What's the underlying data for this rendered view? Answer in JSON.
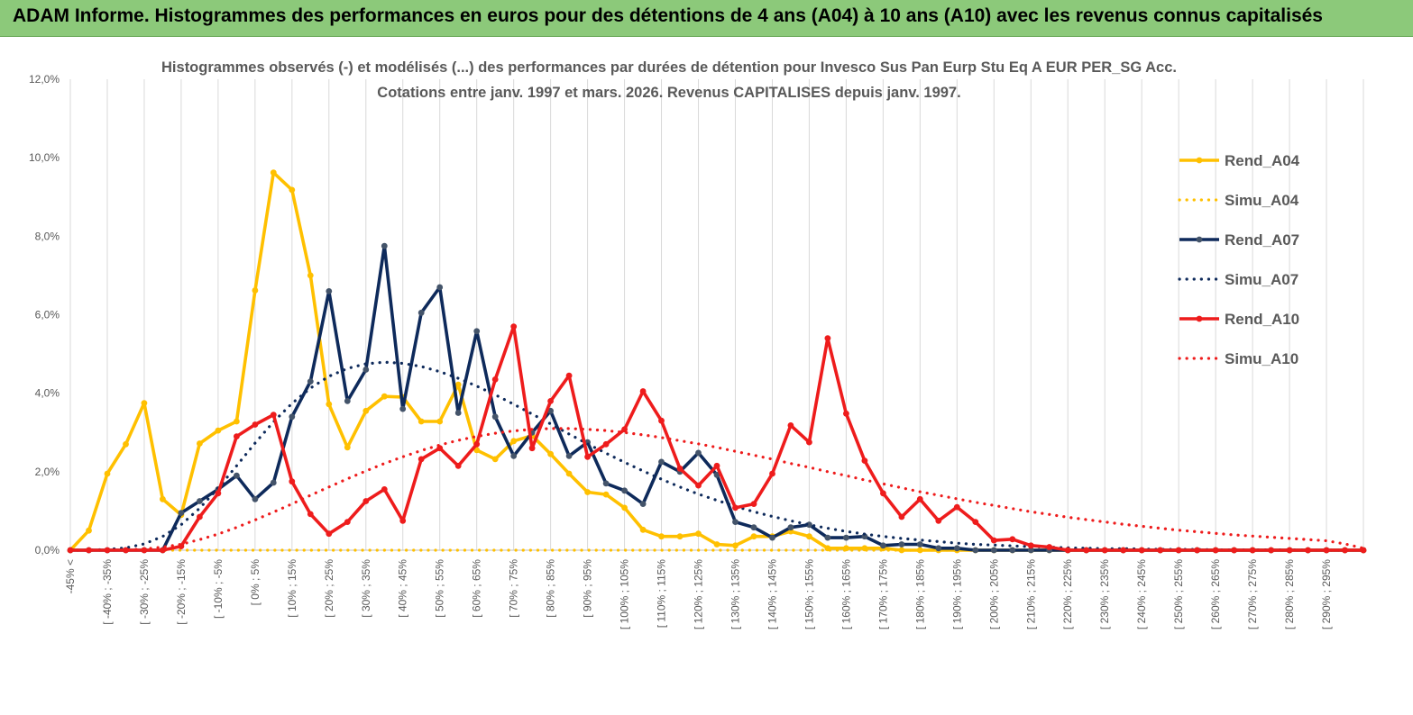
{
  "banner": {
    "title": "ADAM Informe. Histogrammes des performances en euros pour des détentions de 4 ans (A04) à 10 ans (A10) avec les revenus connus capitalisés"
  },
  "chart_data": {
    "type": "line",
    "title_line1": "Histogrammes observés (-) et modélisés (...) des performances par durées de détention pour Invesco Sus Pan Eurp Stu Eq A EUR PER_SG Acc.",
    "title_line2": "Cotations entre janv. 1997 et mars. 2026. Revenus CAPITALISES depuis janv. 1997.",
    "ylim": [
      0,
      12
    ],
    "yticks": [
      "0,0%",
      "2,0%",
      "4,0%",
      "6,0%",
      "8,0%",
      "10,0%",
      "12,0%"
    ],
    "grid": "vertical",
    "legend_position": "right",
    "x_labels": [
      "-45% <",
      "[ -40% ; -35%",
      "[ -30% ; -25%",
      "[ -20% ; -15%",
      "[ -10% ; -5%",
      "[ 0% ; 5%",
      "[ 10% ; 15%",
      "[ 20% ; 25%",
      "[ 30% ; 35%",
      "[ 40% ; 45%",
      "[ 50% ; 55%",
      "[ 60% ; 65%",
      "[ 70% ; 75%",
      "[ 80% ; 85%",
      "[ 90% ; 95%",
      "[ 100% ; 105%",
      "[ 110% ; 115%",
      "[ 120% ; 125%",
      "[ 130% ; 135%",
      "[ 140% ; 145%",
      "[ 150% ; 155%",
      "[ 160% ; 165%",
      "[ 170% ; 175%",
      "[ 180% ; 185%",
      "[ 190% ; 195%",
      "[ 200% ; 205%",
      "[ 210% ; 215%",
      "[ 220% ; 225%",
      "[ 230% ; 235%",
      "[ 240% ; 245%",
      "[ 250% ; 255%",
      "[ 260% ; 265%",
      "[ 270% ; 275%",
      "[ 280% ; 285%",
      "[ 290% ; 295%"
    ],
    "series": [
      {
        "name": "Rend_A04",
        "style": "solid",
        "color": "#FFC000",
        "values": [
          0,
          0.5,
          1.95,
          2.7,
          3.75,
          1.3,
          0.9,
          2.72,
          3.05,
          3.28,
          6.62,
          9.62,
          9.18,
          7.0,
          3.72,
          2.62,
          3.55,
          3.92,
          3.9,
          3.28,
          3.28,
          4.22,
          2.55,
          2.32,
          2.78,
          2.92,
          2.45,
          1.95,
          1.48,
          1.42,
          1.08,
          0.52,
          0.35,
          0.35,
          0.42,
          0.15,
          0.12,
          0.35,
          0.35,
          0.48,
          0.35,
          0.05,
          0.05,
          0.05,
          0.05,
          0,
          0,
          0,
          0,
          0,
          0,
          0,
          0,
          0,
          0,
          0,
          0,
          0,
          0,
          0,
          0,
          0,
          0,
          0,
          0,
          0,
          0,
          0,
          0,
          0,
          0
        ]
      },
      {
        "name": "Simu_A04",
        "style": "dotted",
        "color": "#FFC000",
        "values": [
          0,
          0,
          0,
          0,
          0,
          0,
          0,
          0,
          0,
          0,
          0,
          0,
          0,
          0,
          0,
          0,
          0,
          0,
          0,
          0,
          0,
          0,
          0,
          0,
          0,
          0,
          0,
          0,
          0,
          0,
          0,
          0,
          0,
          0,
          0,
          0,
          0,
          0,
          0,
          0,
          0,
          0,
          0,
          0,
          0,
          0,
          0,
          0,
          0,
          0,
          0,
          0,
          0,
          0,
          0,
          0,
          0,
          0,
          0,
          0,
          0,
          0,
          0,
          0,
          0,
          0,
          0,
          0,
          0,
          0,
          0
        ]
      },
      {
        "name": "Rend_A07",
        "style": "solid",
        "color": "#0E2A5B",
        "values": [
          0,
          0,
          0,
          0,
          0,
          0,
          0.95,
          1.25,
          1.55,
          1.9,
          1.3,
          1.72,
          3.4,
          4.3,
          6.6,
          3.8,
          4.6,
          7.75,
          3.6,
          6.05,
          6.7,
          3.5,
          5.58,
          3.4,
          2.4,
          3.0,
          3.55,
          2.4,
          2.75,
          1.7,
          1.52,
          1.18,
          2.25,
          2.0,
          2.48,
          1.92,
          0.72,
          0.58,
          0.32,
          0.58,
          0.65,
          0.32,
          0.32,
          0.35,
          0.12,
          0.15,
          0.15,
          0.05,
          0.05,
          0,
          0,
          0,
          0,
          0,
          0,
          0,
          0,
          0,
          0,
          0,
          0,
          0,
          0,
          0,
          0,
          0,
          0,
          0,
          0,
          0,
          0
        ]
      },
      {
        "name": "Simu_A07",
        "style": "dotted",
        "color": "#0E2A5B",
        "values": [
          0,
          0,
          0.02,
          0.06,
          0.16,
          0.35,
          0.65,
          1.07,
          1.58,
          2.15,
          2.73,
          3.27,
          3.74,
          4.13,
          4.43,
          4.63,
          4.75,
          4.79,
          4.76,
          4.68,
          4.55,
          4.38,
          4.18,
          3.96,
          3.72,
          3.47,
          3.22,
          2.96,
          2.71,
          2.47,
          2.24,
          2.02,
          1.81,
          1.61,
          1.43,
          1.27,
          1.12,
          0.98,
          0.86,
          0.75,
          0.65,
          0.56,
          0.48,
          0.41,
          0.35,
          0.3,
          0.26,
          0.22,
          0.18,
          0.15,
          0.13,
          0.11,
          0.09,
          0.08,
          0.06,
          0.05,
          0.04,
          0.04,
          0.03,
          0.02,
          0.02,
          0.02,
          0.01,
          0.01,
          0.01,
          0.01,
          0.01,
          0,
          0,
          0,
          0
        ]
      },
      {
        "name": "Rend_A10",
        "style": "solid",
        "color": "#EE1C1C",
        "values": [
          0,
          0,
          0,
          0,
          0,
          0,
          0.1,
          0.85,
          1.45,
          2.9,
          3.2,
          3.45,
          1.75,
          0.92,
          0.42,
          0.72,
          1.25,
          1.55,
          0.75,
          2.32,
          2.6,
          2.15,
          2.7,
          4.35,
          5.7,
          2.6,
          3.8,
          4.45,
          2.38,
          2.7,
          3.08,
          4.05,
          3.3,
          2.08,
          1.65,
          2.15,
          1.08,
          1.18,
          1.95,
          3.18,
          2.75,
          5.4,
          3.48,
          2.28,
          1.45,
          0.85,
          1.3,
          0.75,
          1.1,
          0.72,
          0.25,
          0.28,
          0.12,
          0.08,
          0,
          0,
          0,
          0,
          0,
          0,
          0,
          0,
          0,
          0,
          0,
          0,
          0,
          0,
          0,
          0,
          0
        ]
      },
      {
        "name": "Simu_A10",
        "style": "dotted",
        "color": "#EE1C1C",
        "values": [
          0,
          0,
          0,
          0.01,
          0.03,
          0.08,
          0.15,
          0.27,
          0.41,
          0.58,
          0.77,
          0.97,
          1.18,
          1.4,
          1.61,
          1.82,
          2.02,
          2.21,
          2.38,
          2.54,
          2.68,
          2.8,
          2.9,
          2.98,
          3.04,
          3.08,
          3.1,
          3.1,
          3.08,
          3.05,
          3.0,
          2.94,
          2.87,
          2.79,
          2.71,
          2.62,
          2.52,
          2.42,
          2.32,
          2.21,
          2.11,
          2.0,
          1.9,
          1.79,
          1.69,
          1.59,
          1.49,
          1.4,
          1.31,
          1.22,
          1.14,
          1.06,
          0.98,
          0.91,
          0.84,
          0.78,
          0.72,
          0.66,
          0.61,
          0.56,
          0.51,
          0.47,
          0.43,
          0.39,
          0.36,
          0.33,
          0.3,
          0.27,
          0.24,
          0.16,
          0.05
        ]
      }
    ]
  }
}
